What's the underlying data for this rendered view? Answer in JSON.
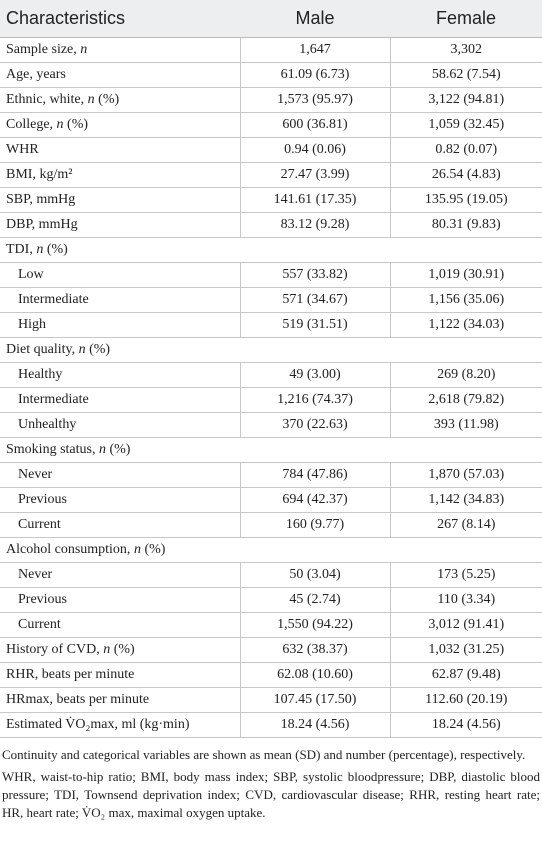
{
  "table": {
    "header": [
      "Characteristics",
      "Male",
      "Female"
    ],
    "rows": [
      {
        "label": "Sample size, n",
        "male": "1,647",
        "female": "3,302"
      },
      {
        "label": "Age, years",
        "male": "61.09 (6.73)",
        "female": "58.62 (7.54)"
      },
      {
        "label": "Ethnic, white, n (%)",
        "male": "1,573 (95.97)",
        "female": "3,122 (94.81)"
      },
      {
        "label": "College, n (%)",
        "male": "600 (36.81)",
        "female": "1,059 (32.45)"
      },
      {
        "label": "WHR",
        "male": "0.94 (0.06)",
        "female": "0.82 (0.07)"
      },
      {
        "label": "BMI, kg/m²",
        "male": "27.47 (3.99)",
        "female": "26.54 (4.83)"
      },
      {
        "label": "SBP, mmHg",
        "male": "141.61 (17.35)",
        "female": "135.95 (19.05)"
      },
      {
        "label": "DBP, mmHg",
        "male": "83.12 (9.28)",
        "female": "80.31 (9.83)"
      },
      {
        "label": "TDI, n (%)",
        "rows": [
          {
            "label": "Low",
            "male": "557 (33.82)",
            "female": "1,019 (30.91)"
          },
          {
            "label": "Intermediate",
            "male": "571 (34.67)",
            "female": "1,156 (35.06)"
          },
          {
            "label": "High",
            "male": "519 (31.51)",
            "female": "1,122 (34.03)"
          }
        ]
      },
      {
        "label": "Diet quality, n (%)",
        "rows": [
          {
            "label": "Healthy",
            "male": "49 (3.00)",
            "female": "269 (8.20)"
          },
          {
            "label": "Intermediate",
            "male": "1,216 (74.37)",
            "female": "2,618 (79.82)"
          },
          {
            "label": "Unhealthy",
            "male": "370 (22.63)",
            "female": "393 (11.98)"
          }
        ]
      },
      {
        "label": "Smoking status, n (%)",
        "rows": [
          {
            "label": "Never",
            "male": "784 (47.86)",
            "female": "1,870 (57.03)"
          },
          {
            "label": "Previous",
            "male": "694 (42.37)",
            "female": "1,142 (34.83)"
          },
          {
            "label": "Current",
            "male": "160 (9.77)",
            "female": "267 (8.14)"
          }
        ]
      },
      {
        "label": "Alcohol consumption, n (%)",
        "rows": [
          {
            "label": "Never",
            "male": "50 (3.04)",
            "female": "173 (5.25)"
          },
          {
            "label": "Previous",
            "male": "45 (2.74)",
            "female": "110 (3.34)"
          },
          {
            "label": "Current",
            "male": "1,550 (94.22)",
            "female": "3,012 (91.41)"
          }
        ]
      },
      {
        "label": "History of CVD, n (%)",
        "male": "632 (38.37)",
        "female": "1,032 (31.25)"
      },
      {
        "label": "RHR, beats per minute",
        "male": "62.08 (10.60)",
        "female": "62.87 (9.48)"
      },
      {
        "label": "HRmax, beats per minute",
        "male": "107.45 (17.50)",
        "female": "112.60 (20.19)"
      },
      {
        "label": "Estimated V̇O₂max, ml (kg·min)",
        "male": "18.24 (4.56)",
        "female": "18.24 (4.56)"
      }
    ]
  },
  "notes": [
    "Continuity and categorical variables are shown as mean (SD) and number (percentage), respectively.",
    "WHR, waist-to-hip ratio; BMI, body mass index; SBP, systolic bloodpressure; DBP, diastolic blood pressure; TDI, Townsend deprivation index; CVD, cardiovascular disease; RHR, resting heart rate; HR, heart rate; V̇O₂ max, maximal oxygen uptake."
  ]
}
